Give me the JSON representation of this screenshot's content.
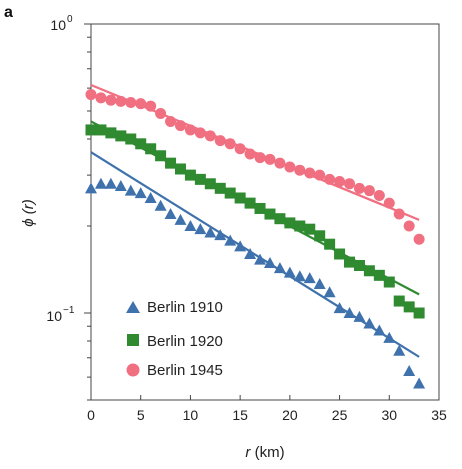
{
  "panel_label": "a",
  "chart_data": {
    "type": "scatter",
    "xlabel_var": "r",
    "xlabel_unit": "(km)",
    "ylabel": "ϕ (r)",
    "xlim": [
      0,
      35
    ],
    "ylim": [
      0.05,
      1.0
    ],
    "yscale": "log",
    "x_ticks": [
      0,
      5,
      10,
      15,
      20,
      25,
      30,
      35
    ],
    "y_tick_labels": [
      {
        "value": 1.0,
        "base": "10",
        "exp": "0"
      },
      {
        "value": 0.1,
        "base": "10",
        "exp": "−1"
      }
    ],
    "grid": false,
    "legend_position": "bottom-left",
    "series": [
      {
        "name": "Berlin 1910",
        "marker": "triangle",
        "color": "#3f72ad",
        "x": [
          0,
          1,
          2,
          3,
          4,
          5,
          6,
          7,
          8,
          9,
          10,
          11,
          12,
          13,
          14,
          15,
          16,
          17,
          18,
          19,
          20,
          21,
          22,
          23,
          24,
          25,
          26,
          27,
          28,
          29,
          30,
          31,
          32,
          33
        ],
        "y": [
          0.27,
          0.28,
          0.28,
          0.275,
          0.265,
          0.26,
          0.25,
          0.235,
          0.22,
          0.21,
          0.2,
          0.195,
          0.19,
          0.186,
          0.178,
          0.17,
          0.16,
          0.153,
          0.149,
          0.143,
          0.138,
          0.134,
          0.132,
          0.126,
          0.118,
          0.104,
          0.1,
          0.097,
          0.092,
          0.087,
          0.082,
          0.074,
          0.063,
          0.057
        ],
        "fit": {
          "x": [
            0,
            33
          ],
          "y": [
            0.36,
            0.0705
          ]
        }
      },
      {
        "name": "Berlin 1920",
        "marker": "square",
        "color": "#2f8a30",
        "x": [
          0,
          1,
          2,
          3,
          4,
          5,
          6,
          7,
          8,
          9,
          10,
          11,
          12,
          13,
          14,
          15,
          16,
          17,
          18,
          19,
          20,
          21,
          22,
          23,
          24,
          25,
          26,
          27,
          28,
          29,
          30,
          31,
          32,
          33
        ],
        "y": [
          0.43,
          0.43,
          0.42,
          0.41,
          0.4,
          0.385,
          0.37,
          0.35,
          0.33,
          0.315,
          0.3,
          0.29,
          0.28,
          0.27,
          0.26,
          0.25,
          0.24,
          0.23,
          0.22,
          0.212,
          0.205,
          0.2,
          0.195,
          0.185,
          0.173,
          0.16,
          0.15,
          0.146,
          0.14,
          0.135,
          0.128,
          0.11,
          0.105,
          0.1
        ],
        "fit": {
          "x": [
            0,
            33
          ],
          "y": [
            0.46,
            0.116
          ]
        }
      },
      {
        "name": "Berlin 1945",
        "marker": "circle",
        "color": "#f06f80",
        "x": [
          0,
          1,
          2,
          3,
          4,
          5,
          6,
          7,
          8,
          9,
          10,
          11,
          12,
          13,
          14,
          15,
          16,
          17,
          18,
          19,
          20,
          21,
          22,
          23,
          24,
          25,
          26,
          27,
          28,
          29,
          30,
          31,
          32,
          33
        ],
        "y": [
          0.57,
          0.555,
          0.545,
          0.54,
          0.535,
          0.53,
          0.52,
          0.49,
          0.46,
          0.445,
          0.43,
          0.42,
          0.41,
          0.395,
          0.385,
          0.37,
          0.355,
          0.345,
          0.34,
          0.33,
          0.32,
          0.312,
          0.305,
          0.3,
          0.29,
          0.285,
          0.28,
          0.27,
          0.265,
          0.255,
          0.24,
          0.22,
          0.2,
          0.18
        ],
        "fit": {
          "x": [
            0,
            33
          ],
          "y": [
            0.615,
            0.21
          ]
        }
      }
    ]
  }
}
